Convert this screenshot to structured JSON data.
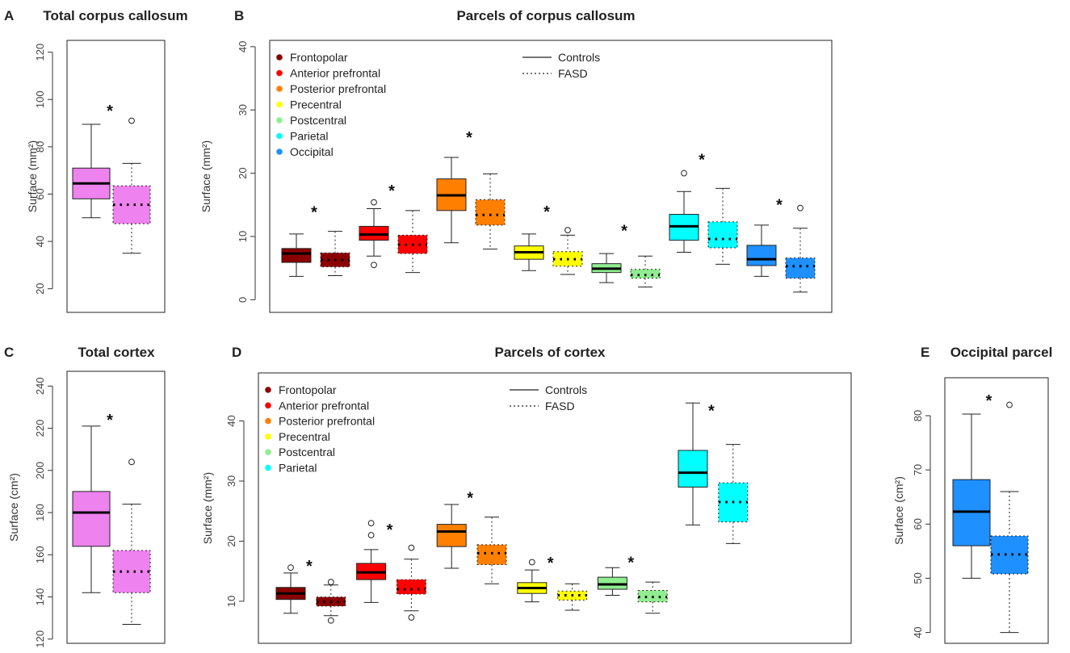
{
  "chart_data": [
    {
      "id": "A",
      "letter": "A",
      "type": "boxplot",
      "title": "Total corpus callosum",
      "ylabel": "Surface (mm²)",
      "ylim": [
        10,
        125
      ],
      "yticks": [
        20,
        40,
        60,
        80,
        100,
        120
      ],
      "legend": null,
      "boxes": [
        {
          "group": "Controls",
          "color": "#EE82EE",
          "style": "solid",
          "min": 50,
          "q1": 58,
          "median": 64.5,
          "q3": 71,
          "max": 89.5,
          "outliers": []
        },
        {
          "group": "FASD",
          "color": "#EE82EE",
          "style": "dotted",
          "min": 35,
          "q1": 47.5,
          "median": 55.5,
          "q3": 63.5,
          "max": 73,
          "outliers": [
            91
          ],
          "star": 97
        }
      ]
    },
    {
      "id": "B",
      "letter": "B",
      "type": "boxplot",
      "title": "Parcels of corpus callosum",
      "ylabel": "Surface (mm²)",
      "ylim": [
        -2,
        41
      ],
      "yticks": [
        0,
        10,
        20,
        30,
        40
      ],
      "legend": {
        "parcels": [
          {
            "label": "Frontopolar",
            "color": "#8B0000"
          },
          {
            "label": "Anterior prefrontal",
            "color": "#FF0000"
          },
          {
            "label": "Posterior prefrontal",
            "color": "#FF7F00"
          },
          {
            "label": "Precentral",
            "color": "#FFFF00"
          },
          {
            "label": "Postcentral",
            "color": "#90EE90"
          },
          {
            "label": "Parietal",
            "color": "#00FFFF"
          },
          {
            "label": "Occipital",
            "color": "#1E90FF"
          }
        ],
        "lines": [
          {
            "label": "Controls",
            "style": "solid"
          },
          {
            "label": "FASD",
            "style": "dotted"
          }
        ]
      },
      "boxes": [
        {
          "group": "Frontopolar Controls",
          "color": "#8B0000",
          "style": "solid",
          "min": 3.7,
          "q1": 5.9,
          "median": 7.3,
          "q3": 8.1,
          "max": 10.4,
          "outliers": []
        },
        {
          "group": "Frontopolar FASD",
          "color": "#8B0000",
          "style": "dotted",
          "min": 3.8,
          "q1": 5.2,
          "median": 6.3,
          "q3": 7.4,
          "max": 10.8,
          "outliers": [],
          "star": 14.5
        },
        {
          "group": "Anterior prefrontal Controls",
          "color": "#FF0000",
          "style": "solid",
          "min": 6.9,
          "q1": 9.4,
          "median": 10.3,
          "q3": 11.6,
          "max": 14.4,
          "outliers": [
            15.4,
            5.5
          ]
        },
        {
          "group": "Anterior prefrontal FASD",
          "color": "#FF0000",
          "style": "dotted",
          "min": 4.3,
          "q1": 7.3,
          "median": 8.7,
          "q3": 10.2,
          "max": 14.1,
          "outliers": [],
          "star": 17.9
        },
        {
          "group": "Posterior prefrontal Controls",
          "color": "#FF7F00",
          "style": "solid",
          "min": 9,
          "q1": 14.1,
          "median": 16.5,
          "q3": 19.1,
          "max": 22.5,
          "outliers": []
        },
        {
          "group": "Posterior prefrontal FASD",
          "color": "#FF7F00",
          "style": "dotted",
          "min": 8,
          "q1": 11.8,
          "median": 13.4,
          "q3": 15.8,
          "max": 19.9,
          "outliers": [],
          "star": 26.3
        },
        {
          "group": "Precentral Controls",
          "color": "#FFFF00",
          "style": "solid",
          "min": 4.6,
          "q1": 6.4,
          "median": 7.5,
          "q3": 8.5,
          "max": 10.4,
          "outliers": []
        },
        {
          "group": "Precentral FASD",
          "color": "#FFFF00",
          "style": "dotted",
          "min": 4,
          "q1": 5.3,
          "median": 6.4,
          "q3": 7.6,
          "max": 10.2,
          "outliers": [
            11
          ],
          "star": 14.6
        },
        {
          "group": "Postcentral Controls",
          "color": "#90EE90",
          "style": "solid",
          "min": 2.7,
          "q1": 4.3,
          "median": 4.9,
          "q3": 5.7,
          "max": 7.3,
          "outliers": []
        },
        {
          "group": "Postcentral FASD",
          "color": "#90EE90",
          "style": "dotted",
          "min": 2,
          "q1": 3.4,
          "median": 3.9,
          "q3": 4.8,
          "max": 6.9,
          "outliers": [],
          "star": 11.6
        },
        {
          "group": "Parietal Controls",
          "color": "#00FFFF",
          "style": "solid",
          "min": 7.5,
          "q1": 9.4,
          "median": 11.6,
          "q3": 13.5,
          "max": 17.1,
          "outliers": [
            20
          ]
        },
        {
          "group": "Parietal FASD",
          "color": "#00FFFF",
          "style": "dotted",
          "min": 5.6,
          "q1": 8.2,
          "median": 9.6,
          "q3": 12.3,
          "max": 17.6,
          "outliers": [],
          "star": 22.8
        },
        {
          "group": "Occipital Controls",
          "color": "#1E90FF",
          "style": "solid",
          "min": 3.7,
          "q1": 5.4,
          "median": 6.4,
          "q3": 8.6,
          "max": 11.8,
          "outliers": []
        },
        {
          "group": "Occipital FASD",
          "color": "#1E90FF",
          "style": "dotted",
          "min": 1.2,
          "q1": 3.4,
          "median": 5.3,
          "q3": 6.6,
          "max": 11.3,
          "outliers": [
            14.5
          ],
          "star": 15.7
        }
      ]
    },
    {
      "id": "C",
      "letter": "C",
      "type": "boxplot",
      "title": "Total cortex",
      "ylabel": "Surface (cm²)",
      "ylim": [
        118,
        247
      ],
      "yticks": [
        120,
        140,
        160,
        180,
        200,
        220,
        240
      ],
      "legend": null,
      "boxes": [
        {
          "group": "Controls",
          "color": "#EE82EE",
          "style": "solid",
          "min": 142,
          "q1": 164,
          "median": 180,
          "q3": 190,
          "max": 221,
          "outliers": []
        },
        {
          "group": "FASD",
          "color": "#EE82EE",
          "style": "dotted",
          "min": 127,
          "q1": 142,
          "median": 152,
          "q3": 162,
          "max": 184,
          "outliers": [
            204
          ],
          "star": 226
        }
      ]
    },
    {
      "id": "D",
      "letter": "D",
      "type": "boxplot",
      "title": "Parcels of cortex",
      "ylabel": "Surface (mm²)",
      "ylim": [
        3,
        48
      ],
      "yticks": [
        10,
        20,
        30,
        40
      ],
      "legend": {
        "parcels": [
          {
            "label": "Frontopolar",
            "color": "#8B0000"
          },
          {
            "label": "Anterior prefrontal",
            "color": "#FF0000"
          },
          {
            "label": "Posterior prefrontal",
            "color": "#FF7F00"
          },
          {
            "label": "Precentral",
            "color": "#FFFF00"
          },
          {
            "label": "Postcentral",
            "color": "#90EE90"
          },
          {
            "label": "Parietal",
            "color": "#00FFFF"
          }
        ],
        "lines": [
          {
            "label": "Controls",
            "style": "solid"
          },
          {
            "label": "FASD",
            "style": "dotted"
          }
        ]
      },
      "boxes": [
        {
          "group": "Frontopolar Controls",
          "color": "#8B0000",
          "style": "solid",
          "min": 8,
          "q1": 10.3,
          "median": 11.3,
          "q3": 12.3,
          "max": 14.7,
          "outliers": [
            15.6
          ]
        },
        {
          "group": "Frontopolar FASD",
          "color": "#8B0000",
          "style": "dotted",
          "min": 7.6,
          "q1": 9.2,
          "median": 9.9,
          "q3": 10.7,
          "max": 12.7,
          "outliers": [
            13.2,
            6.8
          ],
          "star": 16.6
        },
        {
          "group": "Anterior prefrontal Controls",
          "color": "#FF0000",
          "style": "solid",
          "min": 9.8,
          "q1": 13.6,
          "median": 14.8,
          "q3": 16.3,
          "max": 18.6,
          "outliers": [
            21,
            23
          ]
        },
        {
          "group": "Anterior prefrontal FASD",
          "color": "#FF0000",
          "style": "dotted",
          "min": 8.4,
          "q1": 11.2,
          "median": 12,
          "q3": 13.6,
          "max": 17,
          "outliers": [
            18.9,
            7.3
          ],
          "star": 22.6
        },
        {
          "group": "Posterior prefrontal Controls",
          "color": "#FF7F00",
          "style": "solid",
          "min": 15.5,
          "q1": 19.1,
          "median": 21.6,
          "q3": 22.8,
          "max": 26.1,
          "outliers": []
        },
        {
          "group": "Posterior prefrontal FASD",
          "color": "#FF7F00",
          "style": "dotted",
          "min": 12.9,
          "q1": 16.1,
          "median": 18,
          "q3": 19.4,
          "max": 24,
          "outliers": [],
          "star": 27.9
        },
        {
          "group": "Precentral Controls",
          "color": "#FFFF00",
          "style": "solid",
          "min": 9.9,
          "q1": 11.3,
          "median": 12.2,
          "q3": 13.1,
          "max": 15.2,
          "outliers": [
            16.5
          ]
        },
        {
          "group": "Precentral FASD",
          "color": "#FFFF00",
          "style": "dotted",
          "min": 8.5,
          "q1": 10.2,
          "median": 11,
          "q3": 11.7,
          "max": 12.9,
          "outliers": [],
          "star": 17.1
        },
        {
          "group": "Postcentral Controls",
          "color": "#90EE90",
          "style": "solid",
          "min": 11,
          "q1": 12,
          "median": 12.8,
          "q3": 14,
          "max": 15.6,
          "outliers": []
        },
        {
          "group": "Postcentral FASD",
          "color": "#90EE90",
          "style": "dotted",
          "min": 8,
          "q1": 9.9,
          "median": 10.7,
          "q3": 11.8,
          "max": 13.2,
          "outliers": [],
          "star": 17.2
        },
        {
          "group": "Parietal Controls",
          "color": "#00FFFF",
          "style": "solid",
          "min": 22.7,
          "q1": 29,
          "median": 31.4,
          "q3": 35.1,
          "max": 43,
          "outliers": []
        },
        {
          "group": "Parietal FASD",
          "color": "#00FFFF",
          "style": "dotted",
          "min": 19.6,
          "q1": 23.2,
          "median": 26.5,
          "q3": 29.7,
          "max": 36.1,
          "outliers": [],
          "star": 42.4
        }
      ]
    },
    {
      "id": "E",
      "letter": "E",
      "type": "boxplot",
      "title": "Occipital parcel",
      "ylabel": "Surface (cm²)",
      "ylim": [
        38,
        87
      ],
      "yticks": [
        40,
        50,
        60,
        70,
        80
      ],
      "legend": null,
      "boxes": [
        {
          "group": "Controls",
          "color": "#1E90FF",
          "style": "solid",
          "min": 50,
          "q1": 56,
          "median": 62.3,
          "q3": 68.2,
          "max": 80.3,
          "outliers": []
        },
        {
          "group": "FASD",
          "color": "#1E90FF",
          "style": "dotted",
          "min": 40,
          "q1": 50.8,
          "median": 54.4,
          "q3": 57.8,
          "max": 66,
          "outliers": [
            82
          ],
          "star": 83.6
        }
      ]
    }
  ]
}
